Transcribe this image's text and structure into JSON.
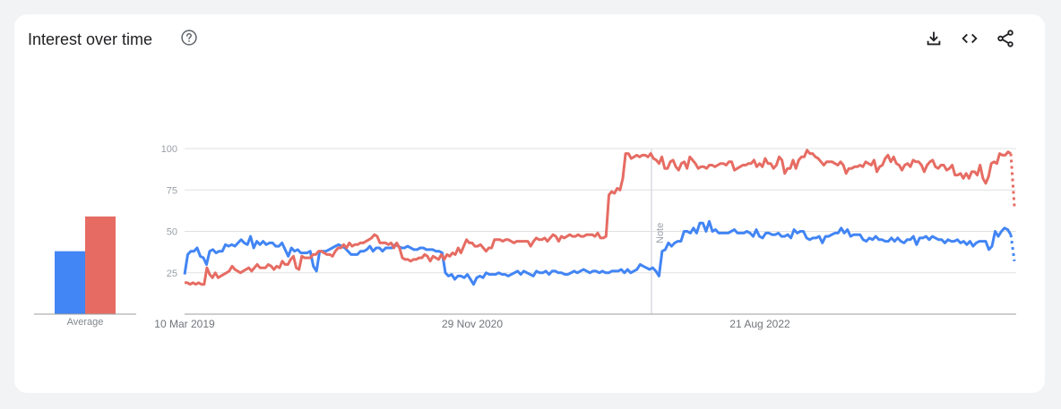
{
  "header": {
    "title": "Interest over time",
    "help_icon": "help-circle-icon",
    "tools": [
      {
        "name": "download-icon",
        "label": "Download CSV"
      },
      {
        "name": "embed-icon",
        "label": "Embed"
      },
      {
        "name": "share-icon",
        "label": "Share"
      }
    ]
  },
  "average": {
    "label": "Average",
    "values": [
      38,
      59
    ],
    "colors": [
      "#4285f4",
      "#e66c63"
    ]
  },
  "note_label": "Note",
  "chart_data": {
    "type": "line",
    "title": "Interest over time",
    "xlabel": "",
    "ylabel": "",
    "ylim": [
      0,
      100
    ],
    "yticks": [
      25,
      50,
      75,
      100
    ],
    "grid": true,
    "xtick_labels": [
      "10 Mar 2019",
      "29 Nov 2020",
      "21 Aug 2022"
    ],
    "annotations": [
      {
        "label": "Note",
        "position": "approx. Nov 2021"
      }
    ],
    "x_start": "10 Mar 2019",
    "x_interval": "weekly",
    "series": [
      {
        "name": "Series 1 (blue)",
        "color": "#4285f4",
        "values": [
          24,
          36,
          38,
          38,
          40,
          35,
          34,
          30,
          38,
          39,
          37,
          38,
          38,
          42,
          41,
          42,
          41,
          43,
          45,
          43,
          42,
          47,
          40,
          44,
          42,
          44,
          42,
          43,
          43,
          41,
          41,
          43,
          39,
          35,
          40,
          38,
          39,
          37,
          37,
          37,
          38,
          29,
          26,
          38,
          38,
          38,
          39,
          40,
          41,
          42,
          41,
          40,
          38,
          36,
          36,
          36,
          38,
          38,
          39,
          41,
          38,
          40,
          40,
          38,
          40,
          40,
          40,
          42,
          41,
          40,
          40,
          41,
          40,
          39,
          39,
          40,
          40,
          39,
          39,
          39,
          38,
          38,
          37,
          25,
          23,
          24,
          21,
          23,
          23,
          22,
          24,
          21,
          18,
          22,
          23,
          22,
          25,
          24,
          24,
          24,
          25,
          24,
          24,
          23,
          24,
          25,
          26,
          24,
          26,
          25,
          24,
          23,
          26,
          25,
          25,
          26,
          24,
          26,
          26,
          25,
          25,
          24,
          24,
          25,
          26,
          25,
          26,
          27,
          26,
          25,
          26,
          26,
          25,
          26,
          25,
          25,
          26,
          26,
          26,
          27,
          25,
          27,
          25,
          26,
          27,
          30,
          29,
          28,
          27,
          28,
          26,
          23,
          38,
          39,
          43,
          41,
          43,
          44,
          44,
          50,
          50,
          49,
          52,
          49,
          55,
          55,
          50,
          56,
          50,
          51,
          49,
          49,
          49,
          49,
          50,
          51,
          49,
          49,
          49,
          50,
          49,
          47,
          51,
          47,
          46,
          49,
          49,
          48,
          48,
          49,
          47,
          47,
          48,
          46,
          51,
          49,
          50,
          50,
          46,
          45,
          46,
          46,
          47,
          43,
          47,
          47,
          48,
          49,
          49,
          52,
          49,
          51,
          47,
          48,
          48,
          48,
          45,
          44,
          46,
          45,
          47,
          45,
          45,
          44,
          44,
          46,
          44,
          46,
          44,
          43,
          45,
          45,
          47,
          42,
          46,
          46,
          47,
          45,
          47,
          46,
          45,
          45,
          43,
          45,
          44,
          44,
          45,
          43,
          44,
          42,
          44,
          41,
          43,
          44,
          44,
          44,
          39,
          41,
          50,
          47,
          50,
          52,
          51,
          48
        ],
        "trailing_partial": 32
      },
      {
        "name": "Series 2 (red)",
        "color": "#e66c63",
        "values": [
          19,
          19,
          18,
          19,
          18,
          19,
          18,
          18,
          28,
          24,
          22,
          25,
          22,
          23,
          24,
          25,
          26,
          29,
          27,
          26,
          25,
          26,
          27,
          28,
          26,
          28,
          30,
          28,
          28,
          28,
          30,
          29,
          27,
          29,
          28,
          32,
          30,
          30,
          33,
          35,
          28,
          27,
          35,
          34,
          34,
          34,
          36,
          36,
          38,
          38,
          37,
          36,
          36,
          35,
          38,
          40,
          40,
          42,
          40,
          43,
          41,
          42,
          42,
          43,
          43,
          44,
          45,
          46,
          48,
          47,
          43,
          43,
          43,
          42,
          43,
          40,
          43,
          40,
          34,
          33,
          33,
          32,
          33,
          33,
          34,
          34,
          36,
          35,
          32,
          35,
          34,
          33,
          36,
          33,
          36,
          35,
          37,
          36,
          40,
          37,
          41,
          45,
          43,
          43,
          41,
          41,
          42,
          40,
          38,
          40,
          40,
          45,
          45,
          45,
          44,
          45,
          45,
          44,
          43,
          44,
          44,
          44,
          44,
          44,
          41,
          44,
          46,
          45,
          45,
          46,
          44,
          46,
          48,
          47,
          44,
          47,
          46,
          47,
          48,
          47,
          47,
          48,
          47,
          47,
          48,
          48,
          48,
          47,
          49,
          46,
          46,
          47,
          72,
          74,
          73,
          76,
          75,
          82,
          97,
          97,
          94,
          95,
          96,
          95,
          96,
          96,
          95,
          97,
          94,
          93,
          91,
          95,
          88,
          88,
          92,
          93,
          89,
          87,
          91,
          92,
          88,
          95,
          93,
          91,
          88,
          89,
          89,
          88,
          90,
          90,
          89,
          90,
          91,
          91,
          90,
          92,
          92,
          87,
          88,
          89,
          90,
          90,
          91,
          91,
          93,
          89,
          91,
          89,
          94,
          91,
          91,
          88,
          90,
          95,
          93,
          85,
          88,
          88,
          93,
          88,
          93,
          95,
          95,
          99,
          97,
          97,
          95,
          94,
          92,
          90,
          92,
          92,
          92,
          91,
          90,
          92,
          90,
          85,
          88,
          88,
          89,
          89,
          90,
          89,
          92,
          91,
          90,
          93,
          86,
          89,
          90,
          94,
          96,
          92,
          95,
          91,
          90,
          87,
          90,
          91,
          89,
          93,
          92,
          92,
          90,
          86,
          90,
          92,
          93,
          89,
          88,
          90,
          90,
          87,
          88,
          90,
          84,
          84,
          85,
          82,
          85,
          82,
          86,
          86,
          84,
          90,
          82,
          79,
          83,
          91,
          92,
          91,
          97,
          96,
          96,
          98,
          97
        ],
        "trailing_partial": 65
      }
    ]
  }
}
